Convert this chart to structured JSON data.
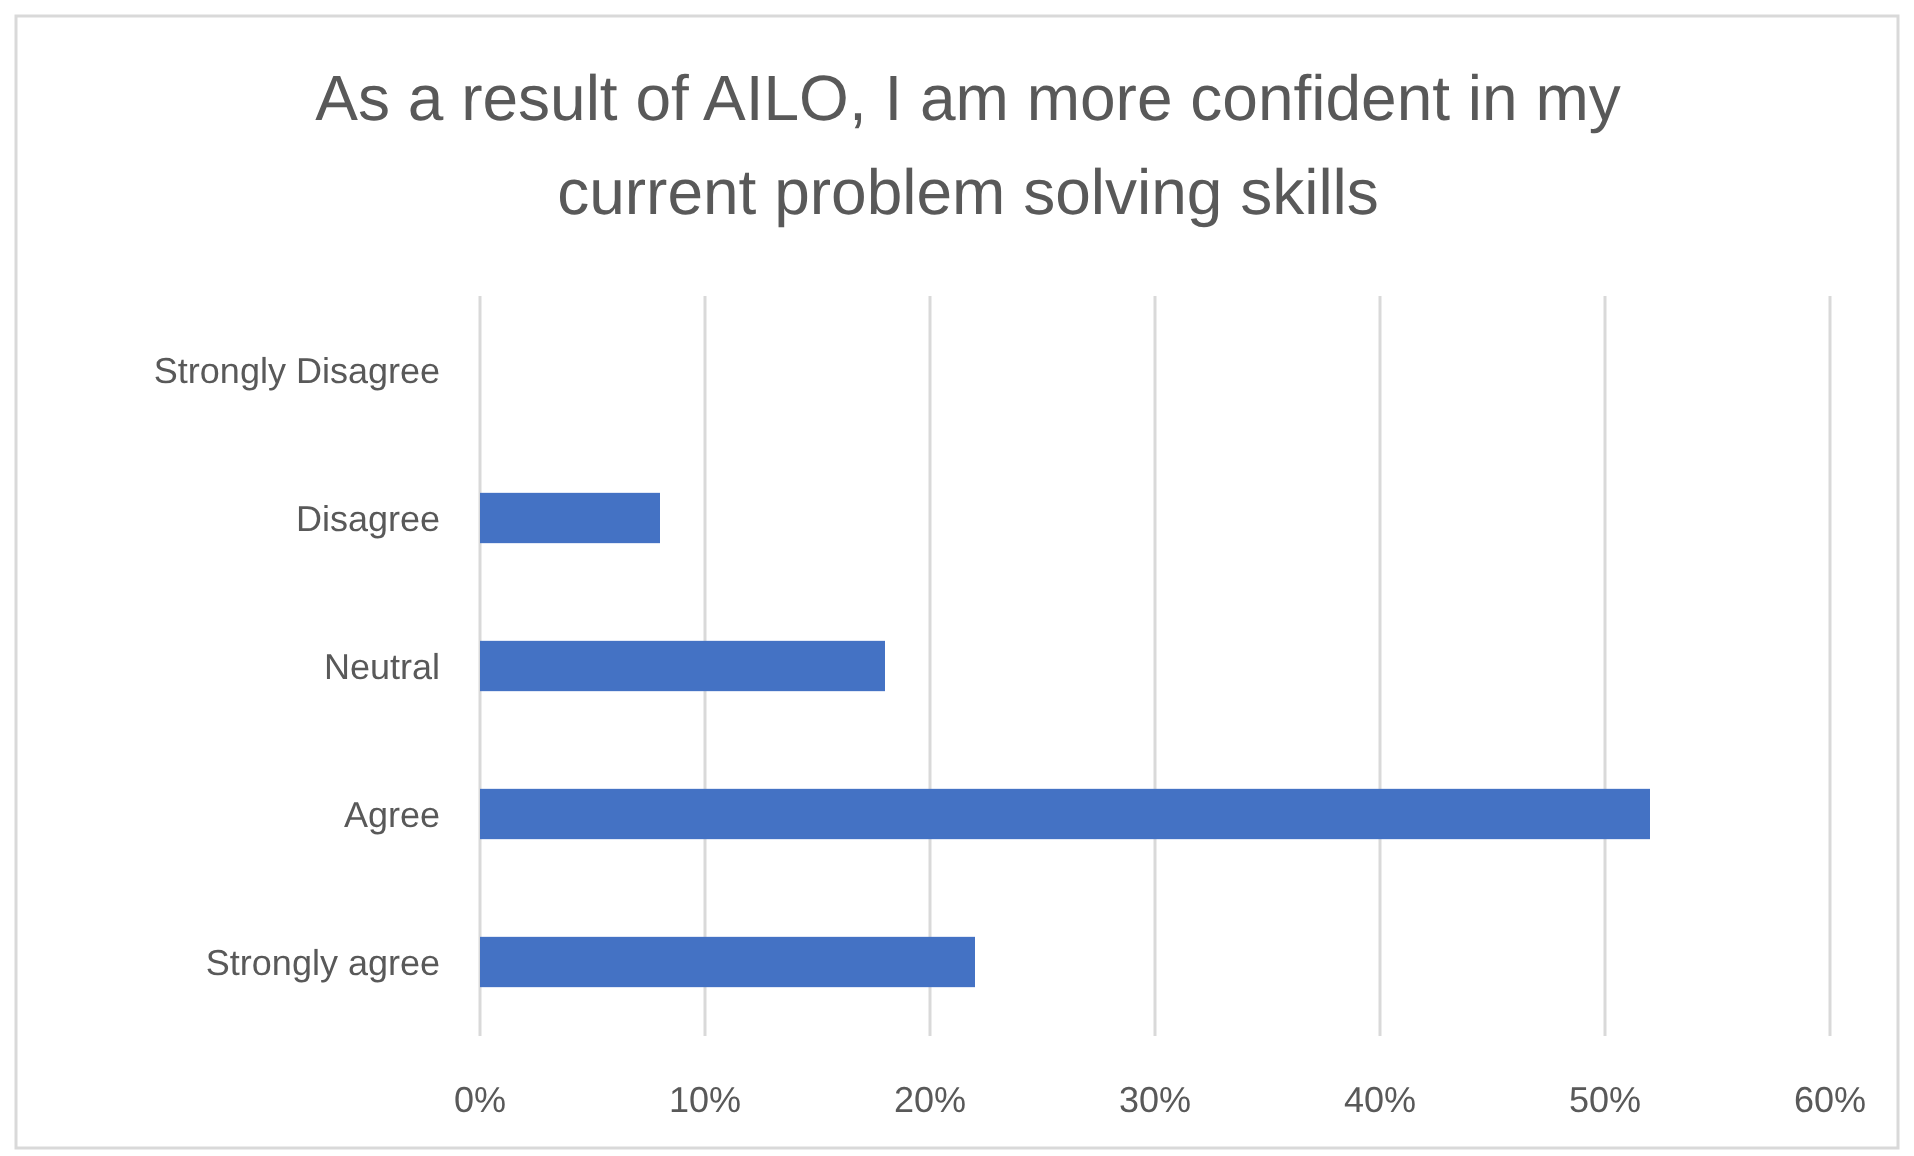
{
  "chart_data": {
    "type": "bar",
    "orientation": "horizontal",
    "title": "As a result of AILO, I am more confident in my current problem solving skills",
    "categories": [
      "Strongly Disagree",
      "Disagree",
      "Neutral",
      "Agree",
      "Strongly agree"
    ],
    "values": [
      0,
      8,
      18,
      52,
      22
    ],
    "color": "#4472c4",
    "xlim": [
      0,
      60
    ],
    "xticks": [
      {
        "value": 0,
        "label": "0%"
      },
      {
        "value": 10,
        "label": "10%"
      },
      {
        "value": 20,
        "label": "20%"
      },
      {
        "value": 30,
        "label": "30%"
      },
      {
        "value": 40,
        "label": "40%"
      },
      {
        "value": 50,
        "label": "50%"
      },
      {
        "value": 60,
        "label": "60%"
      }
    ],
    "grid": "x"
  }
}
